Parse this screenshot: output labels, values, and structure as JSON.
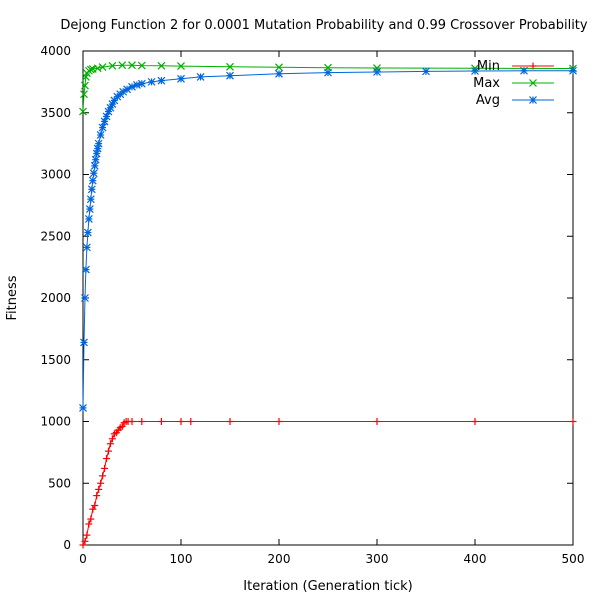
{
  "chart_data": {
    "type": "line",
    "title": "Dejong Function 2 for 0.0001 Mutation Probability and 0.99 Crossover Probability",
    "xlabel": "Iteration (Generation tick)",
    "ylabel": "Fitness",
    "xlim": [
      0,
      500
    ],
    "ylim": [
      0,
      4000
    ],
    "x_ticks": [
      "0",
      "100",
      "200",
      "300",
      "400",
      "500"
    ],
    "y_ticks": [
      "0",
      "500",
      "1000",
      "1500",
      "2000",
      "2500",
      "3000",
      "3500",
      "4000"
    ],
    "grid": false,
    "legend_position": "top-right",
    "series": [
      {
        "name": "Min",
        "color": "#ff0000",
        "marker": "plus",
        "x": [
          0,
          2,
          4,
          6,
          8,
          10,
          12,
          14,
          16,
          18,
          20,
          22,
          24,
          26,
          28,
          30,
          32,
          34,
          36,
          38,
          40,
          42,
          44,
          46,
          50,
          60,
          80,
          100,
          110,
          150,
          200,
          300,
          400,
          500
        ],
        "values": [
          0,
          30,
          80,
          170,
          210,
          290,
          320,
          400,
          450,
          500,
          560,
          620,
          700,
          760,
          820,
          860,
          900,
          910,
          930,
          950,
          960,
          990,
          1000,
          1000,
          1000,
          1000,
          1000,
          1000,
          1000,
          1000,
          1000,
          1000,
          1000,
          1000
        ]
      },
      {
        "name": "Max",
        "color": "#00b000",
        "marker": "cross",
        "x": [
          0,
          1,
          2,
          3,
          4,
          6,
          8,
          10,
          15,
          20,
          30,
          40,
          50,
          60,
          80,
          100,
          150,
          200,
          250,
          300,
          400,
          500
        ],
        "values": [
          3510,
          3650,
          3720,
          3790,
          3820,
          3840,
          3850,
          3855,
          3860,
          3870,
          3880,
          3885,
          3885,
          3882,
          3880,
          3878,
          3872,
          3868,
          3865,
          3862,
          3860,
          3858
        ]
      },
      {
        "name": "Avg",
        "color": "#0066dd",
        "marker": "star",
        "x": [
          0,
          1,
          2,
          3,
          4,
          5,
          6,
          7,
          8,
          9,
          10,
          11,
          12,
          13,
          14,
          15,
          16,
          18,
          20,
          22,
          24,
          26,
          28,
          30,
          32,
          35,
          38,
          41,
          45,
          50,
          55,
          60,
          70,
          80,
          100,
          120,
          150,
          200,
          250,
          300,
          350,
          400,
          450,
          500
        ],
        "values": [
          1110,
          1640,
          2000,
          2230,
          2410,
          2530,
          2640,
          2720,
          2800,
          2880,
          2950,
          3010,
          3070,
          3120,
          3170,
          3210,
          3250,
          3320,
          3380,
          3430,
          3470,
          3510,
          3540,
          3570,
          3600,
          3630,
          3650,
          3670,
          3690,
          3710,
          3725,
          3735,
          3750,
          3760,
          3775,
          3790,
          3800,
          3815,
          3825,
          3830,
          3835,
          3838,
          3840,
          3840
        ]
      }
    ]
  }
}
